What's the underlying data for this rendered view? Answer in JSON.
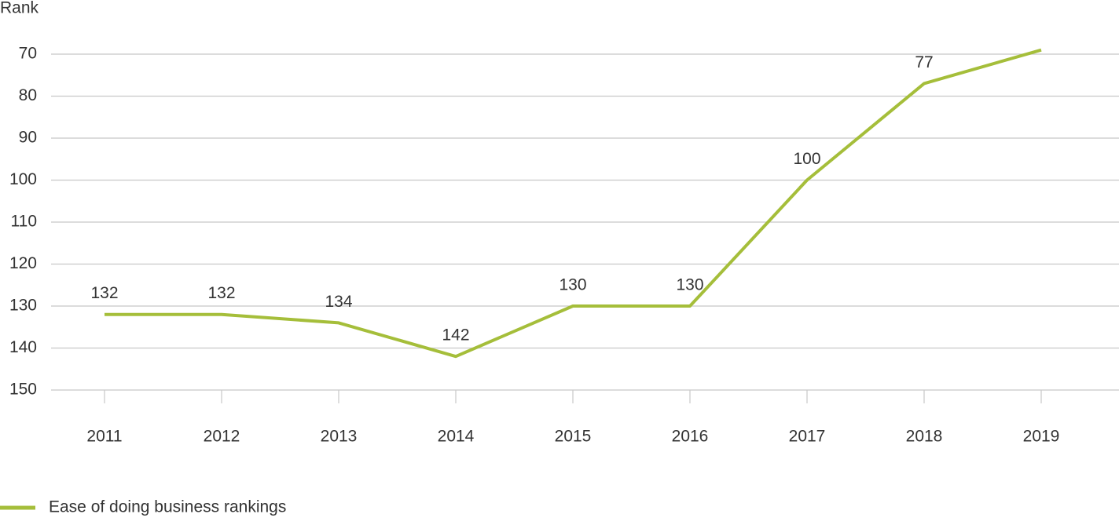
{
  "chart_data": {
    "type": "line",
    "y_axis_label": "Rank",
    "categories": [
      "2011",
      "2012",
      "2013",
      "2014",
      "2015",
      "2016",
      "2017",
      "2018",
      "2019"
    ],
    "series": [
      {
        "name": "Ease of doing business rankings",
        "color": "#a5be3a",
        "values": [
          132,
          132,
          134,
          142,
          130,
          130,
          100,
          77,
          69
        ],
        "value_labels": [
          "132",
          "132",
          "134",
          "142",
          "130",
          "130",
          "100",
          "77",
          null
        ]
      }
    ],
    "ylim": [
      150,
      70
    ],
    "yticks": [
      70,
      80,
      90,
      100,
      110,
      120,
      130,
      140,
      150
    ],
    "grid": true,
    "legend": "bottom-left"
  }
}
